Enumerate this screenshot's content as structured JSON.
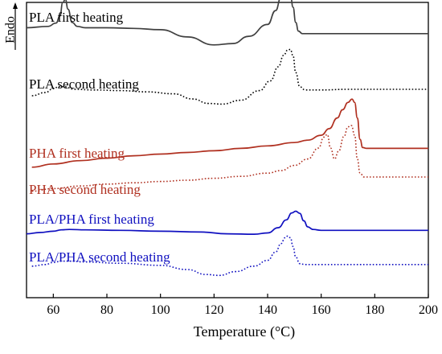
{
  "chart_data": {
    "type": "line",
    "title": "",
    "xlabel": "Temperature (°C)",
    "ylabel": "Endo",
    "xlim": [
      50,
      200
    ],
    "xticks": [
      60,
      80,
      100,
      120,
      140,
      160,
      180,
      200
    ],
    "yaxis": "offset curves, no numeric scale; arrow points up toward Endo",
    "grid": false,
    "legend": "labels placed above each curve",
    "series": [
      {
        "name": "PLA first heating",
        "color": "#404040",
        "dash": "solid",
        "x": [
          50,
          58,
          61,
          62.5,
          63.5,
          64.5,
          65.5,
          67,
          69,
          72,
          80,
          90,
          100,
          110,
          120,
          127,
          133,
          140,
          143,
          145,
          146.5,
          147.5,
          148.5,
          149.5,
          150.5,
          151.5,
          153,
          155,
          160,
          170,
          185,
          200
        ],
        "y": [
          0.47,
          0.49,
          0.54,
          0.65,
          0.85,
          0.9,
          0.75,
          0.55,
          0.49,
          0.47,
          0.47,
          0.46,
          0.44,
          0.33,
          0.21,
          0.23,
          0.34,
          0.52,
          0.73,
          0.93,
          1.0,
          1.01,
          0.97,
          0.78,
          0.55,
          0.42,
          0.38,
          0.38,
          0.38,
          0.38,
          0.38,
          0.38
        ]
      },
      {
        "name": "PLA second heating",
        "color": "#000000",
        "dash": "dotted",
        "x": [
          52,
          57,
          60,
          62,
          64,
          68,
          75,
          85,
          95,
          105,
          112,
          118,
          123,
          130,
          137,
          141,
          144,
          146,
          147.5,
          148.5,
          149.5,
          150.5,
          152,
          154,
          160,
          170,
          185,
          200
        ],
        "y": [
          0.1,
          0.15,
          0.21,
          0.24,
          0.24,
          0.2,
          0.19,
          0.18,
          0.16,
          0.13,
          0.05,
          -0.02,
          -0.03,
          0.03,
          0.18,
          0.33,
          0.55,
          0.73,
          0.81,
          0.82,
          0.72,
          0.46,
          0.24,
          0.19,
          0.19,
          0.2,
          0.2,
          0.2
        ]
      },
      {
        "name": "PHA first heating",
        "color": "#B03020",
        "dash": "solid",
        "x": [
          52,
          60,
          70,
          80,
          90,
          100,
          110,
          120,
          130,
          140,
          150,
          155,
          160,
          163,
          166,
          168,
          170,
          171.5,
          172.5,
          173.5,
          174.5,
          175.5,
          177,
          180,
          190,
          200
        ],
        "y": [
          0.08,
          0.12,
          0.16,
          0.19,
          0.22,
          0.24,
          0.26,
          0.28,
          0.31,
          0.34,
          0.38,
          0.41,
          0.47,
          0.55,
          0.68,
          0.78,
          0.87,
          0.91,
          0.87,
          0.68,
          0.42,
          0.32,
          0.31,
          0.31,
          0.31,
          0.31
        ]
      },
      {
        "name": "PHA second heating",
        "color": "#B03020",
        "dash": "dotted",
        "x": [
          52,
          60,
          70,
          80,
          90,
          100,
          110,
          120,
          130,
          140,
          145,
          150,
          155,
          159,
          161,
          162.3,
          163.5,
          165,
          166.5,
          168.5,
          170,
          171.3,
          172.5,
          173.5,
          174.5,
          176,
          180,
          190,
          200
        ],
        "y": [
          0.08,
          0.12,
          0.16,
          0.19,
          0.21,
          0.23,
          0.25,
          0.28,
          0.31,
          0.36,
          0.4,
          0.48,
          0.58,
          0.75,
          0.92,
          0.96,
          0.75,
          0.58,
          0.7,
          0.93,
          1.08,
          1.1,
          0.95,
          0.58,
          0.36,
          0.3,
          0.3,
          0.3,
          0.3
        ]
      },
      {
        "name": "PLA/PHA first heating",
        "color": "#1010C0",
        "dash": "solid",
        "x": [
          50,
          55,
          60,
          63,
          66,
          72,
          85,
          100,
          115,
          125,
          135,
          140,
          144,
          147,
          149,
          150.5,
          152,
          153.5,
          155,
          157,
          160,
          170,
          185,
          200
        ],
        "y": [
          0.1,
          0.13,
          0.16,
          0.19,
          0.2,
          0.19,
          0.18,
          0.16,
          0.14,
          0.1,
          0.09,
          0.12,
          0.24,
          0.42,
          0.58,
          0.62,
          0.57,
          0.4,
          0.26,
          0.2,
          0.18,
          0.18,
          0.18,
          0.18
        ]
      },
      {
        "name": "PLA/PHA second heating",
        "color": "#1010C0",
        "dash": "dotted",
        "x": [
          52,
          57,
          60,
          63,
          66,
          72,
          85,
          100,
          110,
          117,
          122,
          128,
          135,
          140,
          143,
          145,
          146.5,
          147.5,
          148.5,
          149.5,
          150.5,
          152,
          154,
          160,
          170,
          185,
          200
        ],
        "y": [
          0.08,
          0.12,
          0.17,
          0.2,
          0.2,
          0.18,
          0.15,
          0.1,
          0.0,
          -0.12,
          -0.14,
          -0.05,
          0.08,
          0.22,
          0.42,
          0.62,
          0.76,
          0.8,
          0.76,
          0.55,
          0.3,
          0.14,
          0.12,
          0.12,
          0.12,
          0.12,
          0.12
        ]
      }
    ]
  }
}
